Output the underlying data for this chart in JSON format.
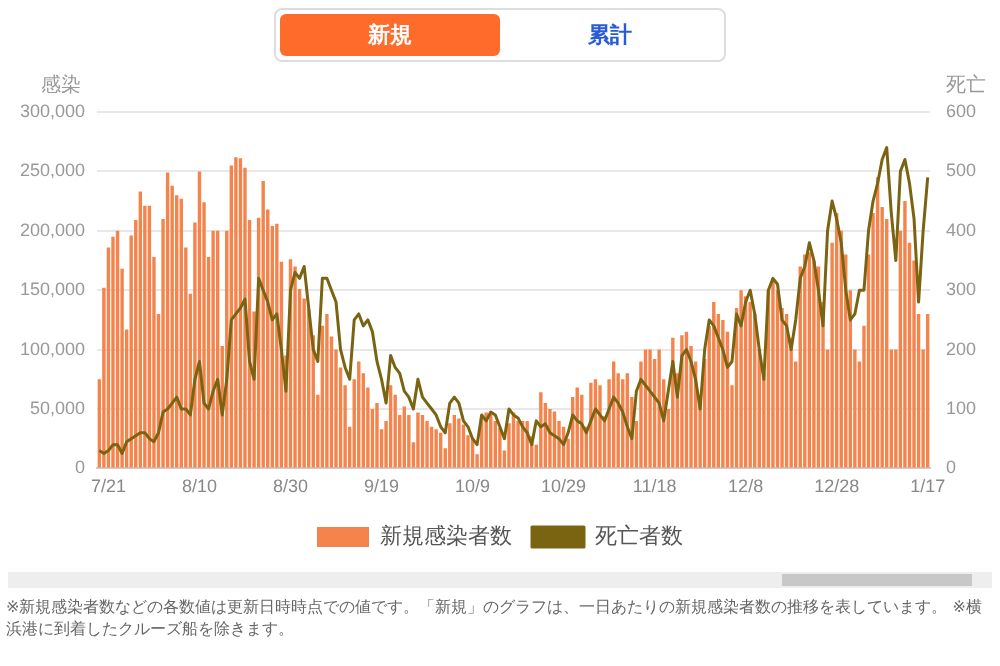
{
  "chart_data": {
    "type": "bar",
    "ylabel": "感染",
    "y2label": "死亡",
    "annotations": [
      "新規",
      "累計",
      "※新規感染者数などの各数値は更新日時時点での値です。「新規」のグラフは、一日あたりの新規感染者数の推移を表しています。 ※横浜港に到着したクルーズ船を除きます。"
    ],
    "categories": [
      null,
      null,
      "7/21",
      null,
      null,
      null,
      null,
      null,
      null,
      null,
      null,
      null,
      null,
      null,
      null,
      null,
      null,
      null,
      null,
      null,
      null,
      null,
      "8/10",
      null,
      null,
      null,
      null,
      null,
      null,
      null,
      null,
      null,
      null,
      null,
      null,
      null,
      null,
      null,
      null,
      null,
      null,
      null,
      "8/30",
      null,
      null,
      null,
      null,
      null,
      null,
      null,
      null,
      null,
      null,
      null,
      null,
      null,
      null,
      null,
      null,
      null,
      null,
      null,
      "9/19",
      null,
      null,
      null,
      null,
      null,
      null,
      null,
      null,
      null,
      null,
      null,
      null,
      null,
      null,
      null,
      null,
      null,
      null,
      null,
      "10/9",
      null,
      null,
      null,
      null,
      null,
      null,
      null,
      null,
      null,
      null,
      null,
      null,
      null,
      null,
      null,
      null,
      null,
      null,
      null,
      "10/29",
      null,
      null,
      null,
      null,
      null,
      null,
      null,
      null,
      null,
      null,
      null,
      null,
      null,
      null,
      null,
      null,
      null,
      null,
      null,
      "11/18",
      null,
      null,
      null,
      null,
      null,
      null,
      null,
      null,
      null,
      null,
      null,
      null,
      null,
      null,
      null,
      null,
      null,
      null,
      null,
      "12/8",
      null,
      null,
      null,
      null,
      null,
      null,
      null,
      null,
      null,
      null,
      null,
      null,
      null,
      null,
      null,
      null,
      null,
      null,
      null,
      "12/28",
      null,
      null,
      null,
      null,
      null,
      null,
      null,
      null,
      null,
      null,
      null,
      null,
      null,
      null,
      null,
      null,
      null,
      null,
      null,
      "1/17"
    ],
    "series": [
      {
        "name": "新規感染者数",
        "color": "#f4844c",
        "values": [
          75000,
          152000,
          186000,
          195000,
          200000,
          168000,
          117000,
          196000,
          209000,
          233000,
          221000,
          221000,
          178000,
          130000,
          210000,
          249000,
          238000,
          230000,
          227000,
          186000,
          147000,
          207000,
          250000,
          224000,
          178000,
          200000,
          200000,
          103000,
          200000,
          255000,
          262000,
          261000,
          253000,
          209000,
          132000,
          211000,
          242000,
          218000,
          204000,
          206000,
          174000,
          95000,
          176000,
          170000,
          151000,
          143000,
          134000,
          112000,
          62000,
          120000,
          130000,
          111000,
          100000,
          85000,
          70000,
          35000,
          75000,
          90000,
          80000,
          68000,
          50000,
          55000,
          33000,
          40000,
          70000,
          62000,
          45000,
          52000,
          45000,
          22000,
          47000,
          45000,
          40000,
          35000,
          33000,
          30000,
          17000,
          38000,
          45000,
          42000,
          37000,
          28000,
          25000,
          12000,
          45000,
          47000,
          46000,
          40000,
          34000,
          15000,
          38000,
          47000,
          40000,
          40000,
          40000,
          27000,
          20000,
          64000,
          55000,
          50000,
          48000,
          40000,
          35000,
          25000,
          60000,
          68000,
          62000,
          35000,
          72000,
          75000,
          70000,
          44000,
          75000,
          90000,
          80000,
          75000,
          80000,
          60000,
          40000,
          90000,
          100000,
          100000,
          92000,
          100000,
          75000,
          50000,
          110000,
          80000,
          112000,
          115000,
          103000,
          90000,
          60000,
          92000,
          120000,
          140000,
          130000,
          125000,
          115000,
          70000,
          135000,
          150000,
          145000,
          140000,
          130000,
          100000,
          80000,
          150000,
          160000,
          150000,
          135000,
          130000,
          110000,
          90000,
          170000,
          180000,
          182000,
          175000,
          170000,
          140000,
          100000,
          190000,
          215000,
          200000,
          180000,
          150000,
          100000,
          90000,
          120000,
          180000,
          215000,
          245000,
          220000,
          210000,
          100000,
          100000,
          200000,
          225000,
          190000,
          175000,
          130000,
          100000,
          130000
        ]
      },
      {
        "name": "死亡者数",
        "type": "line",
        "axis": "y2",
        "color": "#7a6412",
        "values": [
          30,
          25,
          30,
          40,
          40,
          25,
          45,
          50,
          55,
          60,
          60,
          50,
          45,
          60,
          95,
          100,
          110,
          120,
          100,
          100,
          90,
          150,
          180,
          110,
          100,
          130,
          150,
          90,
          150,
          250,
          260,
          270,
          285,
          180,
          150,
          320,
          300,
          280,
          250,
          260,
          200,
          130,
          300,
          330,
          320,
          340,
          270,
          200,
          180,
          320,
          320,
          300,
          280,
          200,
          170,
          150,
          250,
          260,
          240,
          250,
          230,
          180,
          150,
          110,
          190,
          170,
          160,
          130,
          120,
          100,
          150,
          120,
          110,
          100,
          90,
          70,
          60,
          110,
          120,
          110,
          80,
          70,
          50,
          40,
          90,
          80,
          95,
          90,
          70,
          50,
          100,
          90,
          85,
          70,
          60,
          40,
          80,
          70,
          75,
          60,
          55,
          50,
          40,
          60,
          90,
          80,
          75,
          60,
          80,
          100,
          90,
          80,
          100,
          120,
          110,
          95,
          70,
          50,
          130,
          150,
          140,
          130,
          120,
          110,
          80,
          130,
          180,
          120,
          190,
          200,
          180,
          150,
          100,
          200,
          250,
          240,
          220,
          200,
          170,
          180,
          260,
          240,
          280,
          300,
          260,
          200,
          150,
          300,
          320,
          310,
          250,
          240,
          200,
          250,
          320,
          340,
          380,
          350,
          300,
          240,
          400,
          450,
          420,
          380,
          300,
          250,
          260,
          300,
          300,
          400,
          450,
          480,
          520,
          540,
          430,
          350,
          500,
          520,
          480,
          420,
          280,
          400,
          490
        ]
      }
    ],
    "ylim": [
      0,
      300000
    ],
    "yticks": [
      0,
      {
        "value": 50000,
        "label": "50,000"
      },
      {
        "value": 100000,
        "label": "100,000"
      },
      {
        "value": 150000,
        "label": "150,000"
      },
      {
        "value": 200000,
        "label": "200,000"
      },
      {
        "value": 250000,
        "label": "250,000"
      },
      {
        "value": 300000,
        "label": "300,000"
      }
    ],
    "y2lim": [
      0,
      600
    ],
    "y2ticks": [
      0,
      100,
      200,
      300,
      400,
      500,
      600
    ],
    "grid": "y",
    "legend": "bottom",
    "marker": "none",
    "line_style": "solid"
  }
}
